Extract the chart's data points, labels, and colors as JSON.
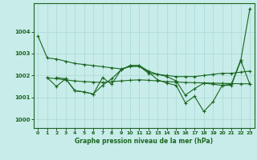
{
  "background_color": "#c8ece9",
  "grid_color": "#a8d8d4",
  "line_color": "#1a6620",
  "marker_color": "#1a6620",
  "xlabel": "Graphe pression niveau de la mer (hPa)",
  "ylim": [
    999.6,
    1005.3
  ],
  "xlim": [
    -0.5,
    23.5
  ],
  "yticks": [
    1000,
    1001,
    1002,
    1003,
    1004
  ],
  "xticks": [
    0,
    1,
    2,
    3,
    4,
    5,
    6,
    7,
    8,
    9,
    10,
    11,
    12,
    13,
    14,
    15,
    16,
    17,
    18,
    19,
    20,
    21,
    22,
    23
  ],
  "series": [
    {
      "x": [
        0,
        1,
        2,
        3,
        4,
        5,
        6,
        7,
        8,
        9,
        10,
        11,
        12,
        13,
        14,
        15,
        16,
        17,
        18,
        19,
        20,
        21,
        22,
        23
      ],
      "y": [
        1003.8,
        1002.8,
        1002.75,
        1002.65,
        1002.55,
        1002.5,
        1002.45,
        1002.4,
        1002.35,
        1002.3,
        1002.4,
        1002.42,
        1002.1,
        1002.05,
        1002.0,
        1001.95,
        1001.95,
        1001.95,
        1002.0,
        1002.05,
        1002.1,
        1002.1,
        1002.15,
        1002.2
      ],
      "marker": "+"
    },
    {
      "x": [
        1,
        2,
        3,
        4,
        5,
        6,
        7,
        8,
        9,
        10,
        11,
        12,
        13,
        14,
        15,
        16,
        17,
        18,
        19,
        20,
        21,
        22,
        23
      ],
      "y": [
        1001.9,
        1001.85,
        1001.8,
        1001.75,
        1001.72,
        1001.7,
        1001.68,
        1001.72,
        1001.75,
        1001.78,
        1001.8,
        1001.78,
        1001.75,
        1001.72,
        1001.7,
        1001.68,
        1001.67,
        1001.66,
        1001.65,
        1001.64,
        1001.63,
        1001.62,
        1001.62
      ],
      "marker": "+"
    },
    {
      "x": [
        1,
        2,
        3,
        4,
        5,
        6,
        7,
        8,
        9,
        10,
        11,
        12,
        13,
        14,
        15,
        16,
        17,
        18,
        19,
        20,
        21,
        22,
        23
      ],
      "y": [
        1001.9,
        1001.5,
        1001.85,
        1001.3,
        1001.25,
        1001.15,
        1001.55,
        1001.85,
        1002.25,
        1002.45,
        1002.45,
        1002.2,
        1002.05,
        1001.95,
        1001.75,
        1001.1,
        1001.4,
        1001.65,
        1001.6,
        1001.55,
        1001.6,
        1002.7,
        1001.6
      ],
      "marker": "+"
    },
    {
      "x": [
        2,
        3,
        4,
        5,
        6,
        7,
        8,
        9,
        10,
        11,
        12,
        13,
        14,
        15,
        16,
        17,
        18,
        19,
        20,
        21,
        22,
        23
      ],
      "y": [
        1001.9,
        1001.85,
        1001.3,
        1001.25,
        1001.15,
        1001.9,
        1001.6,
        1002.25,
        1002.45,
        1002.45,
        1002.15,
        1001.8,
        1001.65,
        1001.55,
        1000.75,
        1001.05,
        1000.35,
        1000.8,
        1001.55,
        1001.55,
        1002.65,
        1005.05
      ],
      "marker": "+"
    }
  ]
}
